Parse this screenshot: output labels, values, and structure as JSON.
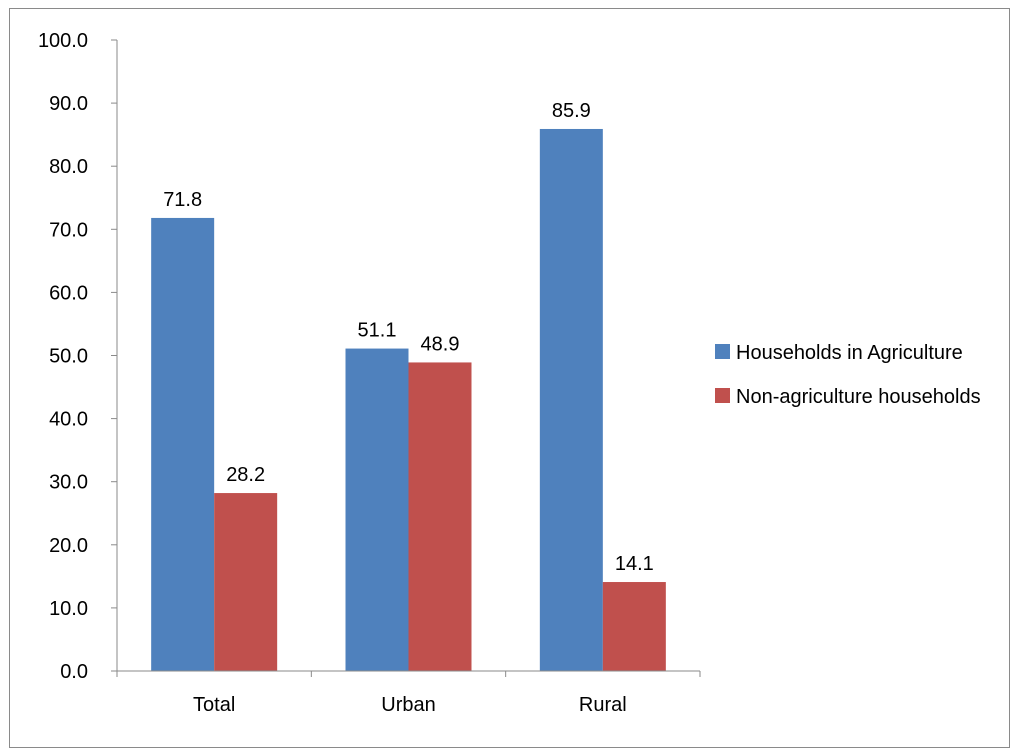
{
  "chart_data": {
    "type": "bar",
    "categories": [
      "Total",
      "Urban",
      "Rural"
    ],
    "series": [
      {
        "name": "Households in Agriculture",
        "values": [
          71.8,
          51.1,
          85.9
        ],
        "color": "#4f81bd"
      },
      {
        "name": "Non-agriculture households",
        "values": [
          28.2,
          48.9,
          14.1
        ],
        "color": "#c0504d"
      }
    ],
    "ylim": [
      0,
      100
    ],
    "yticks": [
      "0.0",
      "10.0",
      "20.0",
      "30.0",
      "40.0",
      "50.0",
      "60.0",
      "70.0",
      "80.0",
      "90.0",
      "100.0"
    ],
    "data_labels": [
      [
        "71.8",
        "51.1",
        "85.9"
      ],
      [
        "28.2",
        "48.9",
        "14.1"
      ]
    ],
    "legend_position": "right",
    "grid": false
  }
}
